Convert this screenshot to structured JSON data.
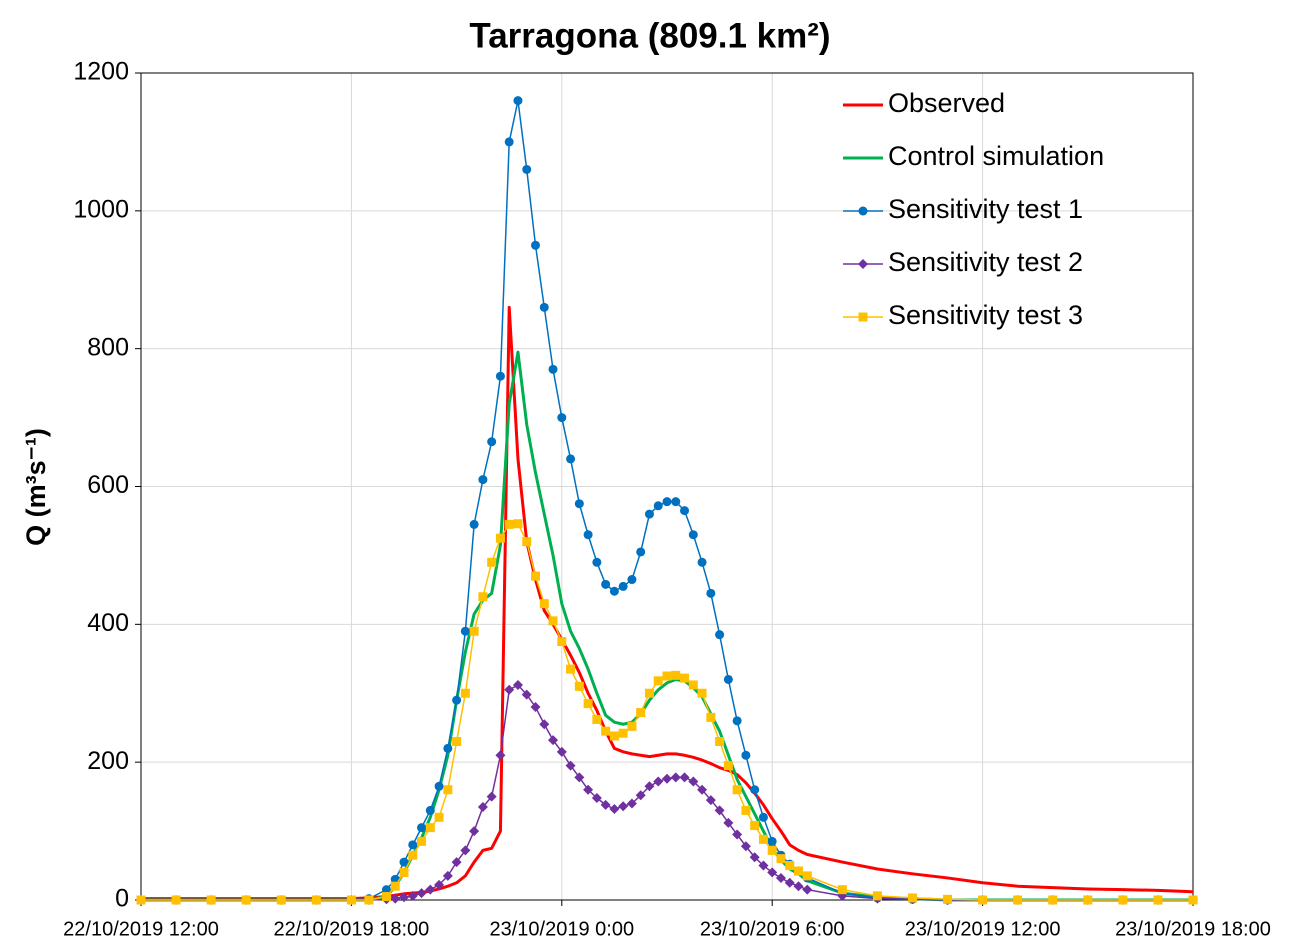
{
  "chart_data": {
    "type": "line",
    "title": "Tarragona (809.1 km²)",
    "y_label": "Q (m³s⁻¹)",
    "x": [
      0,
      1,
      2,
      3,
      4,
      5,
      6,
      6.5,
      7,
      7.25,
      7.5,
      7.75,
      8,
      8.25,
      8.5,
      8.75,
      9,
      9.25,
      9.5,
      9.75,
      10,
      10.25,
      10.5,
      10.75,
      11,
      11.25,
      11.5,
      11.75,
      12,
      12.25,
      12.5,
      12.75,
      13,
      13.25,
      13.5,
      13.75,
      14,
      14.25,
      14.5,
      14.75,
      15,
      15.25,
      15.5,
      15.75,
      16,
      16.25,
      16.5,
      16.75,
      17,
      17.25,
      17.5,
      17.75,
      18,
      18.25,
      18.5,
      18.75,
      19,
      20,
      21,
      22,
      23,
      24,
      25,
      26,
      27,
      28,
      29,
      30
    ],
    "xlim": [
      0,
      30
    ],
    "xticks": [
      {
        "value": 0,
        "label": "22/10/2019 12:00"
      },
      {
        "value": 6,
        "label": "22/10/2019 18:00"
      },
      {
        "value": 12,
        "label": "23/10/2019 0:00"
      },
      {
        "value": 18,
        "label": "23/10/2019 6:00"
      },
      {
        "value": 24,
        "label": "23/10/2019 12:00"
      },
      {
        "value": 30,
        "label": "23/10/2019 18:00"
      }
    ],
    "ylim": [
      0,
      1200
    ],
    "yticks": [
      0,
      200,
      400,
      600,
      800,
      1000,
      1200
    ],
    "grid": true,
    "legend": "upper right",
    "series": [
      {
        "name": "Observed",
        "color": "#ff0000",
        "marker": "none",
        "values": [
          2,
          2,
          2,
          2,
          2,
          2,
          2,
          3,
          5,
          7,
          9,
          10,
          11,
          13,
          16,
          20,
          25,
          35,
          55,
          72,
          75,
          100,
          860,
          640,
          520,
          465,
          420,
          400,
          378,
          355,
          330,
          300,
          275,
          245,
          220,
          215,
          212,
          210,
          208,
          210,
          212,
          212,
          210,
          207,
          203,
          198,
          192,
          188,
          182,
          170,
          155,
          138,
          118,
          100,
          80,
          72,
          66,
          55,
          45,
          38,
          32,
          25,
          20,
          18,
          16,
          15,
          14,
          12
        ]
      },
      {
        "name": "Control simulation",
        "color": "#00b050",
        "marker": "none",
        "values": [
          0,
          0,
          0,
          0,
          0,
          0,
          0,
          0,
          5,
          20,
          40,
          65,
          90,
          120,
          160,
          210,
          290,
          360,
          415,
          435,
          445,
          515,
          720,
          795,
          690,
          620,
          560,
          500,
          430,
          390,
          365,
          335,
          300,
          268,
          258,
          255,
          258,
          270,
          290,
          305,
          315,
          320,
          318,
          308,
          295,
          270,
          245,
          210,
          175,
          150,
          125,
          100,
          75,
          58,
          45,
          38,
          28,
          10,
          4,
          2,
          0,
          0,
          0,
          0,
          0,
          0,
          0,
          0
        ]
      },
      {
        "name": "Sensitivity test 1",
        "color": "#0070c0",
        "marker": "circle",
        "values": [
          0,
          0,
          0,
          0,
          0,
          0,
          0,
          2,
          15,
          30,
          55,
          80,
          105,
          130,
          165,
          220,
          290,
          390,
          545,
          610,
          665,
          760,
          1100,
          1160,
          1060,
          950,
          860,
          770,
          700,
          640,
          575,
          530,
          490,
          458,
          448,
          455,
          465,
          505,
          560,
          572,
          578,
          578,
          565,
          530,
          490,
          445,
          385,
          320,
          260,
          210,
          160,
          120,
          85,
          65,
          52,
          42,
          32,
          10,
          3,
          1,
          0,
          0,
          0,
          0,
          0,
          0,
          0,
          0
        ]
      },
      {
        "name": "Sensitivity test 2",
        "color": "#7030a0",
        "marker": "diamond",
        "values": [
          0,
          0,
          0,
          0,
          0,
          0,
          0,
          0,
          1,
          2,
          4,
          6,
          10,
          15,
          22,
          35,
          55,
          72,
          100,
          135,
          150,
          210,
          305,
          312,
          298,
          280,
          255,
          232,
          215,
          195,
          178,
          160,
          148,
          138,
          132,
          136,
          140,
          152,
          165,
          172,
          176,
          178,
          178,
          172,
          160,
          145,
          130,
          112,
          95,
          78,
          62,
          50,
          40,
          32,
          25,
          20,
          15,
          6,
          2,
          1,
          0,
          0,
          0,
          0,
          0,
          0,
          0,
          0
        ]
      },
      {
        "name": "Sensitivity test 3",
        "color": "#ffc000",
        "marker": "square",
        "values": [
          0,
          0,
          0,
          0,
          0,
          0,
          0,
          0,
          5,
          20,
          40,
          65,
          85,
          105,
          120,
          160,
          230,
          300,
          390,
          440,
          490,
          525,
          545,
          546,
          520,
          470,
          430,
          405,
          375,
          335,
          310,
          285,
          262,
          245,
          238,
          242,
          252,
          272,
          300,
          318,
          325,
          326,
          322,
          312,
          300,
          265,
          230,
          195,
          160,
          130,
          108,
          88,
          72,
          60,
          50,
          42,
          35,
          15,
          6,
          3,
          1,
          0,
          0,
          0,
          0,
          0,
          0,
          0
        ]
      }
    ]
  }
}
